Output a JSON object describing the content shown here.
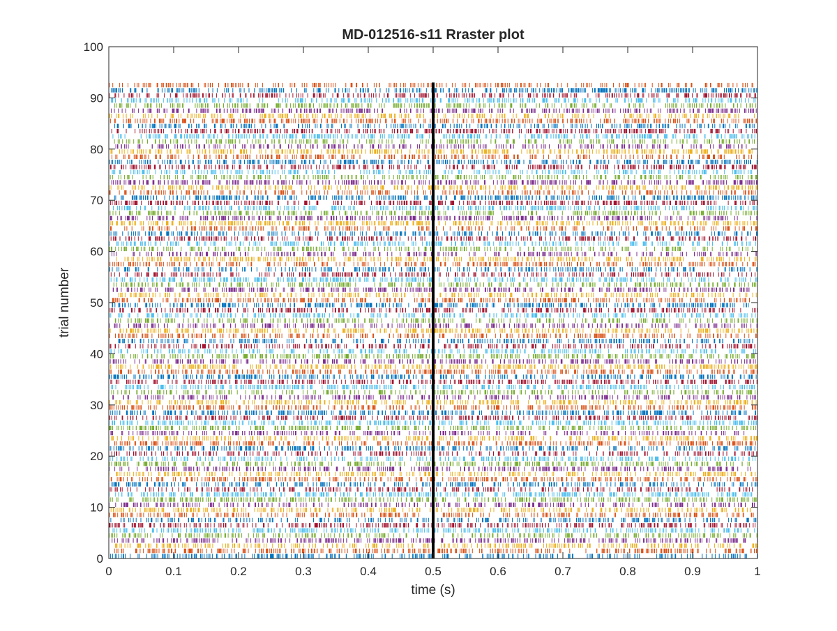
{
  "chart_data": {
    "type": "raster",
    "title": "MD-012516-s11 Rraster plot",
    "xlabel": "time (s)",
    "ylabel": "trial number",
    "xlim": [
      0,
      1
    ],
    "ylim": [
      0,
      100
    ],
    "xticks": [
      0,
      0.1,
      0.2,
      0.3,
      0.4,
      0.5,
      0.6,
      0.7,
      0.8,
      0.9,
      1
    ],
    "xtick_labels": [
      "0",
      "0.1",
      "0.2",
      "0.3",
      "0.4",
      "0.5",
      "0.6",
      "0.7",
      "0.8",
      "0.9",
      "1"
    ],
    "yticks": [
      0,
      10,
      20,
      30,
      40,
      50,
      60,
      70,
      80,
      90,
      100
    ],
    "ytick_labels": [
      "0",
      "10",
      "20",
      "30",
      "40",
      "50",
      "60",
      "70",
      "80",
      "90",
      "100"
    ],
    "n_trials": 93,
    "mean_spikes_per_trial": 300,
    "event_marker_time": 0.5,
    "event_marker_color": "#000000",
    "series_colors": [
      "#0072BD",
      "#D95319",
      "#EDB120",
      "#7E2F8E",
      "#77AC30",
      "#4DBEEE",
      "#A2142F"
    ],
    "grid": false,
    "legend": "none"
  }
}
